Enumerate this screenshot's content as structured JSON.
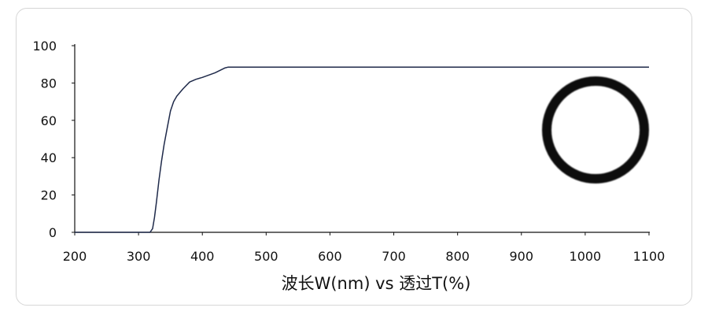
{
  "chart_data": {
    "type": "line",
    "title": "",
    "xlabel": "波长W(nm) vs 透过T(%)",
    "ylabel": "",
    "xlim": [
      200,
      1100
    ],
    "ylim": [
      0,
      100
    ],
    "xticks": [
      200,
      300,
      400,
      500,
      600,
      700,
      800,
      900,
      1000,
      1100
    ],
    "yticks": [
      0,
      20,
      40,
      60,
      80,
      100
    ],
    "grid": false,
    "legend": "none",
    "series": [
      {
        "color": "#1f2a4a",
        "x": [
          200,
          318,
          322,
          325,
          328,
          332,
          336,
          340,
          345,
          350,
          355,
          360,
          370,
          380,
          390,
          400,
          420,
          435,
          440,
          450,
          500,
          600,
          700,
          800,
          900,
          1000,
          1100
        ],
        "y": [
          0,
          0,
          2,
          8,
          16,
          28,
          38,
          47,
          56,
          65,
          70,
          73,
          77,
          80.5,
          82,
          83,
          85.5,
          88,
          88.5,
          88.5,
          88.5,
          88.5,
          88.5,
          88.5,
          88.5,
          88.5,
          88.5
        ]
      }
    ]
  },
  "inset": {
    "icon": "ring-lens-icon",
    "color": "#111111"
  }
}
